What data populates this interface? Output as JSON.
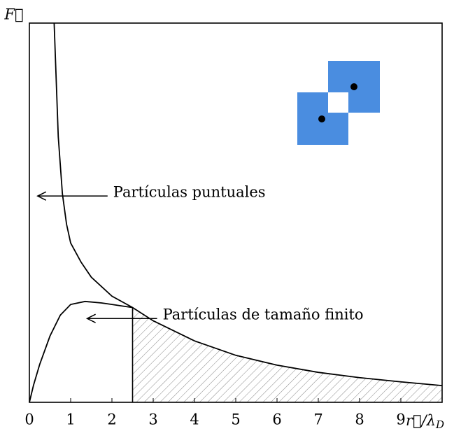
{
  "chart_data": {
    "type": "line",
    "xlabel": "r⃗/λ",
    "xlabel_sub": "D",
    "ylabel": "F⃗",
    "xlim": [
      0,
      10
    ],
    "ylim": [
      0,
      1
    ],
    "xticks": [
      0,
      1,
      2,
      3,
      4,
      5,
      6,
      7,
      8,
      9
    ],
    "series": [
      {
        "color": "#000000",
        "x": [
          0.6,
          0.7,
          0.8,
          0.9,
          1.0,
          1.25,
          1.5,
          2.0,
          2.5,
          3,
          4,
          5,
          6,
          7,
          8,
          9,
          10
        ],
        "values": [
          1.0,
          0.7,
          0.55,
          0.47,
          0.42,
          0.37,
          0.33,
          0.28,
          0.25,
          0.215,
          0.162,
          0.124,
          0.098,
          0.079,
          0.065,
          0.054,
          0.044
        ]
      },
      {
        "color": "#000000",
        "x": [
          0,
          0.1,
          0.25,
          0.5,
          0.75,
          1.0,
          1.35,
          1.75,
          2.0,
          2.25,
          2.5
        ],
        "values": [
          0,
          0.045,
          0.1,
          0.175,
          0.23,
          0.258,
          0.266,
          0.262,
          0.258,
          0.254,
          0.25
        ]
      }
    ],
    "shade_from": 2.5,
    "annotations": [
      {
        "text": "Partículas puntuales",
        "x": 0.2,
        "y": 0.544
      },
      {
        "text": "Partículas de tamaño finito",
        "x": 1.4,
        "y": 0.221
      }
    ]
  }
}
